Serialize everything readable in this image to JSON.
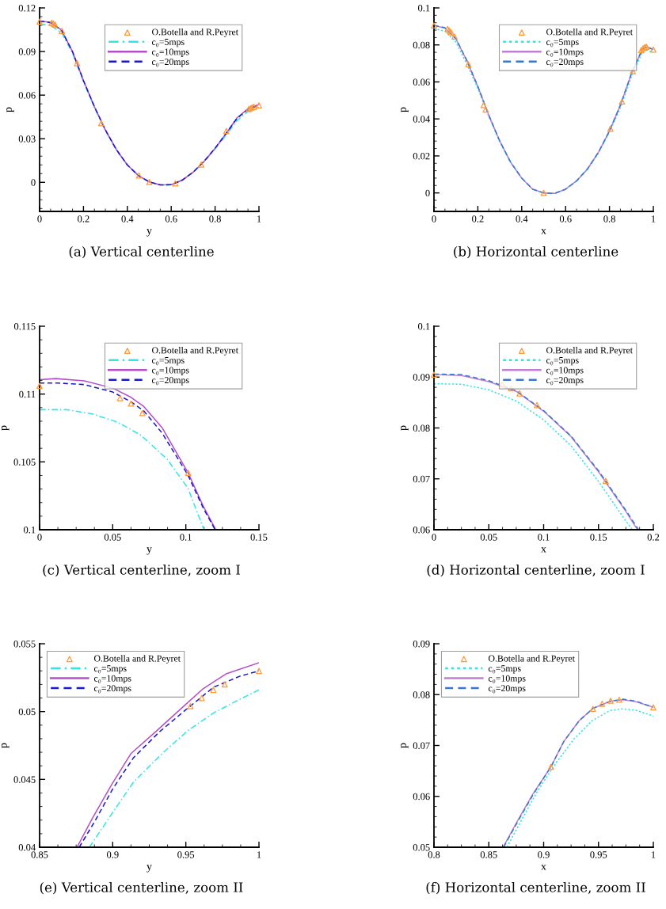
{
  "chart_data": [
    {
      "type": "line",
      "title": "(a) Vertical centerline",
      "xlabel": "y",
      "ylabel": "p",
      "xlim": [
        0,
        1
      ],
      "xticks": [
        0,
        0.2,
        0.4,
        0.6,
        0.8,
        1
      ],
      "ylim": [
        -0.02,
        0.12
      ],
      "yticks": [
        0,
        0.03,
        0.06,
        0.09,
        0.12
      ],
      "grid": false,
      "legend": "top right",
      "series": [
        {
          "name": "O.Botella and R.Peyret",
          "type": "scatter",
          "marker": "triangle",
          "color": "#ff9933",
          "x": [
            0,
            0.055,
            0.0625,
            0.0703,
            0.1016,
            0.171,
            0.281,
            0.453,
            0.5,
            0.619,
            0.737,
            0.851,
            0.9531,
            0.9609,
            0.9688,
            0.9766,
            1
          ],
          "values": [
            0.1106,
            0.1097,
            0.1093,
            0.1086,
            0.1042,
            0.082,
            0.0407,
            0.0047,
            0.0002,
            -0.0007,
            0.0122,
            0.0353,
            0.0504,
            0.051,
            0.0516,
            0.052,
            0.053
          ]
        },
        {
          "name": "c₀=5mps",
          "type": "line",
          "line_style": "dashdot",
          "color": "#33e6e6",
          "x": [
            0,
            0.05,
            0.1,
            0.15,
            0.2,
            0.25,
            0.3,
            0.35,
            0.4,
            0.45,
            0.5,
            0.55,
            0.6,
            0.65,
            0.7,
            0.75,
            0.8,
            0.85,
            0.9,
            0.95,
            1
          ],
          "values": [
            0.1088,
            0.108,
            0.103,
            0.0888,
            0.0692,
            0.0515,
            0.0357,
            0.0223,
            0.0119,
            0.0047,
            0.0003,
            -0.0018,
            -0.0016,
            0.0015,
            0.0069,
            0.0142,
            0.0229,
            0.0325,
            0.0425,
            0.0488,
            0.0515
          ]
        },
        {
          "name": "c₀=10mps",
          "type": "line",
          "line_style": "solid",
          "color": "#b44fc8",
          "x": [
            0,
            0.05,
            0.1,
            0.15,
            0.2,
            0.25,
            0.3,
            0.35,
            0.4,
            0.45,
            0.5,
            0.55,
            0.6,
            0.65,
            0.7,
            0.75,
            0.8,
            0.85,
            0.9,
            0.95,
            1
          ],
          "values": [
            0.111,
            0.1101,
            0.1048,
            0.09,
            0.07,
            0.052,
            0.036,
            0.0225,
            0.012,
            0.0047,
            0.0003,
            -0.0018,
            -0.0016,
            0.0015,
            0.007,
            0.0145,
            0.0235,
            0.0335,
            0.0444,
            0.0506,
            0.0536
          ]
        },
        {
          "name": "c₀=20mps",
          "type": "line",
          "line_style": "dashed",
          "color": "#1a1acc",
          "x": [
            0,
            0.05,
            0.1,
            0.15,
            0.2,
            0.25,
            0.3,
            0.35,
            0.4,
            0.45,
            0.5,
            0.55,
            0.6,
            0.65,
            0.7,
            0.75,
            0.8,
            0.85,
            0.9,
            0.95,
            1
          ],
          "values": [
            0.1108,
            0.1099,
            0.1046,
            0.0899,
            0.07,
            0.052,
            0.036,
            0.0225,
            0.012,
            0.0047,
            0.0003,
            -0.0018,
            -0.0016,
            0.0015,
            0.007,
            0.0145,
            0.0235,
            0.0335,
            0.044,
            0.0502,
            0.0531
          ]
        }
      ]
    },
    {
      "type": "line",
      "title": "(b) Horizontal centerline",
      "xlabel": "x",
      "ylabel": "p",
      "xlim": [
        0,
        1
      ],
      "xticks": [
        0,
        0.2,
        0.4,
        0.6,
        0.8,
        1
      ],
      "ylim": [
        -0.01,
        0.1
      ],
      "yticks": [
        0,
        0.02,
        0.04,
        0.06,
        0.08,
        0.1
      ],
      "grid": false,
      "legend": "top right",
      "series": [
        {
          "name": "O.Botella and R.Peyret",
          "type": "scatter",
          "marker": "triangle",
          "color": "#ff9933",
          "x": [
            0,
            0.0623,
            0.0703,
            0.0781,
            0.0939,
            0.1566,
            0.2264,
            0.2358,
            0.5,
            0.8043,
            0.8573,
            0.9066,
            0.945,
            0.9533,
            0.9611,
            0.9689,
            1
          ],
          "values": [
            0.0905,
            0.0886,
            0.0878,
            0.0868,
            0.0845,
            0.0696,
            0.0475,
            0.0451,
            0.0,
            0.0347,
            0.0494,
            0.0658,
            0.0772,
            0.0782,
            0.0788,
            0.079,
            0.0775
          ]
        },
        {
          "name": "c₀=5mps",
          "type": "line",
          "line_style": "dotted",
          "color": "#33e6e6",
          "x": [
            0,
            0.05,
            0.1,
            0.15,
            0.2,
            0.25,
            0.3,
            0.35,
            0.4,
            0.45,
            0.5,
            0.55,
            0.6,
            0.65,
            0.7,
            0.75,
            0.8,
            0.85,
            0.9,
            0.95,
            0.97,
            1
          ],
          "values": [
            0.0887,
            0.0875,
            0.0816,
            0.0695,
            0.0565,
            0.0413,
            0.0276,
            0.0163,
            0.0079,
            0.002,
            0.0,
            -0.0003,
            0.002,
            0.0063,
            0.0127,
            0.0215,
            0.033,
            0.046,
            0.0628,
            0.0762,
            0.0772,
            0.0759
          ]
        },
        {
          "name": "c₀=10mps",
          "type": "line",
          "line_style": "solid",
          "color": "#c080d0",
          "x": [
            0,
            0.05,
            0.1,
            0.15,
            0.2,
            0.25,
            0.3,
            0.35,
            0.4,
            0.45,
            0.5,
            0.55,
            0.6,
            0.65,
            0.7,
            0.75,
            0.8,
            0.85,
            0.9,
            0.95,
            0.97,
            1
          ],
          "values": [
            0.0905,
            0.0891,
            0.0833,
            0.0714,
            0.0575,
            0.042,
            0.028,
            0.0165,
            0.008,
            0.002,
            0.0,
            -0.0003,
            0.002,
            0.0065,
            0.013,
            0.022,
            0.0335,
            0.0475,
            0.0645,
            0.0776,
            0.0789,
            0.0775
          ]
        },
        {
          "name": "c₀=20mps",
          "type": "line",
          "line_style": "dashed",
          "color": "#3a78d0",
          "x": [
            0,
            0.05,
            0.1,
            0.15,
            0.2,
            0.25,
            0.3,
            0.35,
            0.4,
            0.45,
            0.5,
            0.55,
            0.6,
            0.65,
            0.7,
            0.75,
            0.8,
            0.85,
            0.9,
            0.95,
            0.97,
            1
          ],
          "values": [
            0.0906,
            0.0893,
            0.0834,
            0.0716,
            0.0576,
            0.042,
            0.028,
            0.0165,
            0.008,
            0.002,
            0.0,
            -0.0003,
            0.002,
            0.0065,
            0.013,
            0.022,
            0.0335,
            0.0475,
            0.0645,
            0.0777,
            0.079,
            0.0775
          ]
        }
      ]
    },
    {
      "type": "line",
      "title": "(c) Vertical centerline, zoom I",
      "xlabel": "y",
      "ylabel": "p",
      "xlim": [
        0,
        0.15
      ],
      "xticks": [
        0,
        0.05,
        0.1,
        0.15
      ],
      "ylim": [
        0.1,
        0.115
      ],
      "yticks": [
        0.1,
        0.105,
        0.11,
        0.115
      ],
      "grid": false,
      "legend": "top right",
      "series": [
        {
          "name": "O.Botella and R.Peyret",
          "type": "scatter",
          "marker": "triangle",
          "color": "#ff9933",
          "x": [
            0,
            0.055,
            0.0625,
            0.0703,
            0.1016
          ],
          "values": [
            0.1106,
            0.1097,
            0.1093,
            0.1086,
            0.1042
          ]
        },
        {
          "name": "c₀=5mps",
          "type": "line",
          "line_style": "dashdot",
          "color": "#33e6e6",
          "x": [
            0,
            0.0182,
            0.0359,
            0.0536,
            0.0695,
            0.0872,
            0.1014,
            0.1124
          ],
          "values": [
            0.10885,
            0.10885,
            0.10854,
            0.10792,
            0.10695,
            0.1052,
            0.10307,
            0.1
          ]
        },
        {
          "name": "c₀=10mps",
          "type": "line",
          "line_style": "solid",
          "color": "#b44fc8",
          "x": [
            0,
            0.011,
            0.0306,
            0.05,
            0.0625,
            0.0713,
            0.0837,
            0.1014,
            0.112,
            0.1205
          ],
          "values": [
            0.11106,
            0.11114,
            0.11097,
            0.11044,
            0.10976,
            0.10908,
            0.10753,
            0.10423,
            0.10171,
            0.1
          ]
        },
        {
          "name": "c₀=20mps",
          "type": "line",
          "line_style": "dashed",
          "color": "#1a1acc",
          "x": [
            0,
            0.0129,
            0.0306,
            0.05,
            0.0625,
            0.0713,
            0.0837,
            0.1014,
            0.112,
            0.12
          ],
          "values": [
            0.11081,
            0.11081,
            0.1107,
            0.11015,
            0.10943,
            0.10875,
            0.10714,
            0.10404,
            0.10158,
            0.1
          ]
        }
      ]
    },
    {
      "type": "line",
      "title": "(d) Horizontal centerline, zoom I",
      "xlabel": "x",
      "ylabel": "p",
      "xlim": [
        0,
        0.2
      ],
      "xticks": [
        0,
        0.05,
        0.1,
        0.15,
        0.2
      ],
      "ylim": [
        0.06,
        0.1
      ],
      "yticks": [
        0.06,
        0.07,
        0.08,
        0.09,
        0.1
      ],
      "grid": false,
      "legend": "top right",
      "series": [
        {
          "name": "O.Botella and R.Peyret",
          "type": "scatter",
          "marker": "triangle",
          "color": "#ff9933",
          "x": [
            0,
            0.0623,
            0.0703,
            0.0781,
            0.0939,
            0.1566
          ],
          "values": [
            0.0905,
            0.0886,
            0.0878,
            0.0868,
            0.0845,
            0.0696
          ]
        },
        {
          "name": "c₀=5mps",
          "type": "line",
          "line_style": "dotted",
          "color": "#33e6e6",
          "x": [
            0,
            0.025,
            0.05,
            0.075,
            0.1,
            0.125,
            0.15,
            0.175,
            0.181
          ],
          "values": [
            0.0887,
            0.0886,
            0.0875,
            0.0853,
            0.0816,
            0.0765,
            0.0695,
            0.0617,
            0.06
          ]
        },
        {
          "name": "c₀=10mps",
          "type": "line",
          "line_style": "solid",
          "color": "#c080d0",
          "x": [
            0,
            0.025,
            0.05,
            0.075,
            0.1,
            0.125,
            0.15,
            0.175,
            0.1855
          ],
          "values": [
            0.0905,
            0.0903,
            0.0891,
            0.0872,
            0.0833,
            0.0783,
            0.0714,
            0.0636,
            0.06
          ]
        },
        {
          "name": "c₀=20mps",
          "type": "line",
          "line_style": "dashed",
          "color": "#3a78d0",
          "x": [
            0,
            0.025,
            0.05,
            0.075,
            0.1,
            0.125,
            0.15,
            0.175,
            0.1865
          ],
          "values": [
            0.0906,
            0.0905,
            0.0893,
            0.0873,
            0.0834,
            0.0784,
            0.0716,
            0.0638,
            0.06
          ]
        }
      ]
    },
    {
      "type": "line",
      "title": "(e) Vertical centerline, zoom II",
      "xlabel": "y",
      "ylabel": "p",
      "xlim": [
        0.85,
        1
      ],
      "xticks": [
        0.85,
        0.9,
        0.95,
        1
      ],
      "ylim": [
        0.04,
        0.055
      ],
      "yticks": [
        0.04,
        0.045,
        0.05,
        0.055
      ],
      "grid": false,
      "legend": "top left",
      "series": [
        {
          "name": "O.Botella and R.Peyret",
          "type": "scatter",
          "marker": "triangle",
          "color": "#ff9933",
          "x": [
            0.9531,
            0.9609,
            0.9688,
            0.9766,
            1
          ],
          "values": [
            0.0504,
            0.051,
            0.0516,
            0.052,
            0.053
          ]
        },
        {
          "name": "c₀=5mps",
          "type": "line",
          "line_style": "dashdot",
          "color": "#33e6e6",
          "x": [
            0.8841,
            0.8983,
            0.9142,
            0.9337,
            0.9514,
            0.969,
            0.9868,
            1
          ],
          "values": [
            0.04,
            0.0423,
            0.0448,
            0.0469,
            0.0486,
            0.0499,
            0.0509,
            0.0516
          ]
        },
        {
          "name": "c₀=10mps",
          "type": "line",
          "line_style": "solid",
          "color": "#b44fc8",
          "x": [
            0.8756,
            0.8859,
            0.8992,
            0.9124,
            0.9292,
            0.9496,
            0.962,
            0.9779,
            1
          ],
          "values": [
            0.04,
            0.0421,
            0.0446,
            0.0469,
            0.0485,
            0.0505,
            0.0517,
            0.0528,
            0.0536
          ]
        },
        {
          "name": "c₀=20mps",
          "type": "line",
          "line_style": "dashed",
          "color": "#1a1acc",
          "x": [
            0.8771,
            0.8877,
            0.9,
            0.9142,
            0.9319,
            0.9496,
            0.969,
            0.9868,
            1
          ],
          "values": [
            0.04,
            0.0419,
            0.0443,
            0.0466,
            0.0485,
            0.0501,
            0.0518,
            0.0526,
            0.053
          ]
        }
      ]
    },
    {
      "type": "line",
      "title": "(f) Horizontal centerline, zoom II",
      "xlabel": "x",
      "ylabel": "p",
      "xlim": [
        0.8,
        1
      ],
      "xticks": [
        0.8,
        0.85,
        0.9,
        0.95,
        1
      ],
      "ylim": [
        0.05,
        0.09
      ],
      "yticks": [
        0.05,
        0.06,
        0.07,
        0.08,
        0.09
      ],
      "grid": false,
      "legend": "top left",
      "series": [
        {
          "name": "O.Botella and R.Peyret",
          "type": "scatter",
          "marker": "triangle",
          "color": "#ff9933",
          "x": [
            0.9066,
            0.945,
            0.9533,
            0.9611,
            0.9689,
            1
          ],
          "values": [
            0.0658,
            0.0772,
            0.0782,
            0.0788,
            0.079,
            0.0775
          ]
        },
        {
          "name": "c₀=5mps",
          "type": "line",
          "line_style": "dotted",
          "color": "#33e6e6",
          "x": [
            0.8665,
            0.8807,
            0.8948,
            0.9113,
            0.9278,
            0.9443,
            0.9608,
            0.9726,
            0.9844,
            1
          ],
          "values": [
            0.05,
            0.0557,
            0.0612,
            0.0666,
            0.0713,
            0.0749,
            0.0769,
            0.0772,
            0.0769,
            0.0758
          ]
        },
        {
          "name": "c₀=10mps",
          "type": "line",
          "line_style": "solid",
          "color": "#c080d0",
          "x": [
            0.863,
            0.876,
            0.89,
            0.9066,
            0.9184,
            0.9325,
            0.945,
            0.9608,
            0.9726,
            0.9844,
            1
          ],
          "values": [
            0.05,
            0.0551,
            0.0604,
            0.0658,
            0.0708,
            0.0749,
            0.0773,
            0.0787,
            0.079,
            0.0786,
            0.0775
          ]
        },
        {
          "name": "c₀=20mps",
          "type": "line",
          "line_style": "dashed",
          "color": "#3a78d0",
          "x": [
            0.8635,
            0.8765,
            0.8905,
            0.9066,
            0.9184,
            0.9325,
            0.945,
            0.9608,
            0.9726,
            0.9844,
            1
          ],
          "values": [
            0.05,
            0.0551,
            0.0604,
            0.0658,
            0.0708,
            0.0749,
            0.0773,
            0.0787,
            0.0791,
            0.0787,
            0.0775
          ]
        }
      ]
    }
  ]
}
